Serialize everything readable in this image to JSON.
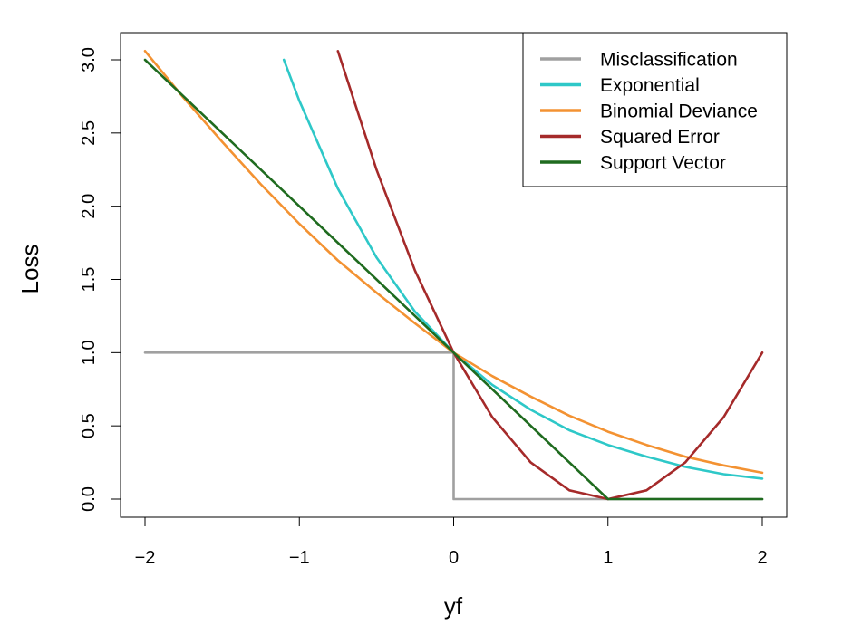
{
  "chart_data": {
    "type": "line",
    "xlabel": "yf",
    "ylabel": "Loss",
    "xlim": [
      -2,
      2
    ],
    "ylim": [
      0,
      3
    ],
    "x_ticks": [
      -2,
      -1,
      0,
      1,
      2
    ],
    "x_tick_labels": [
      "−2",
      "−1",
      "0",
      "1",
      "2"
    ],
    "y_ticks": [
      0,
      0.5,
      1,
      1.5,
      2,
      2.5,
      3
    ],
    "y_tick_labels": [
      "0.0",
      "0.5",
      "1.0",
      "1.5",
      "2.0",
      "2.5",
      "3.0"
    ],
    "legend_position": "top-right",
    "grid": false,
    "series": [
      {
        "name": "Misclassification",
        "color": "#a0a0a0",
        "x": [
          -2,
          0,
          0,
          2
        ],
        "y": [
          1,
          1,
          0,
          0
        ]
      },
      {
        "name": "Exponential",
        "color": "#2ec8c8",
        "x": [
          -1.1,
          -1,
          -0.75,
          -0.5,
          -0.25,
          0,
          0.25,
          0.5,
          0.75,
          1,
          1.25,
          1.5,
          1.75,
          2
        ],
        "y": [
          3.0,
          2.72,
          2.12,
          1.65,
          1.28,
          1.0,
          0.78,
          0.61,
          0.47,
          0.37,
          0.29,
          0.22,
          0.17,
          0.14
        ]
      },
      {
        "name": "Binomial Deviance",
        "color": "#f39232",
        "x": [
          -2,
          -1.75,
          -1.5,
          -1.25,
          -1,
          -0.75,
          -0.5,
          -0.25,
          0,
          0.25,
          0.5,
          0.75,
          1,
          1.25,
          1.5,
          1.75,
          2
        ],
        "y": [
          3.06,
          2.74,
          2.44,
          2.15,
          1.88,
          1.63,
          1.41,
          1.2,
          1.0,
          0.84,
          0.7,
          0.57,
          0.46,
          0.37,
          0.29,
          0.23,
          0.18
        ]
      },
      {
        "name": "Squared Error",
        "color": "#a52a2a",
        "x": [
          -0.75,
          -0.5,
          -0.25,
          0,
          0.25,
          0.5,
          0.75,
          1,
          1.25,
          1.5,
          1.75,
          2
        ],
        "y": [
          3.06,
          2.25,
          1.56,
          1.0,
          0.56,
          0.25,
          0.06,
          0.0,
          0.06,
          0.25,
          0.56,
          1.0
        ]
      },
      {
        "name": "Support Vector",
        "color": "#1f6b1f",
        "x": [
          -2,
          1,
          2
        ],
        "y": [
          3,
          0,
          0
        ]
      }
    ]
  }
}
